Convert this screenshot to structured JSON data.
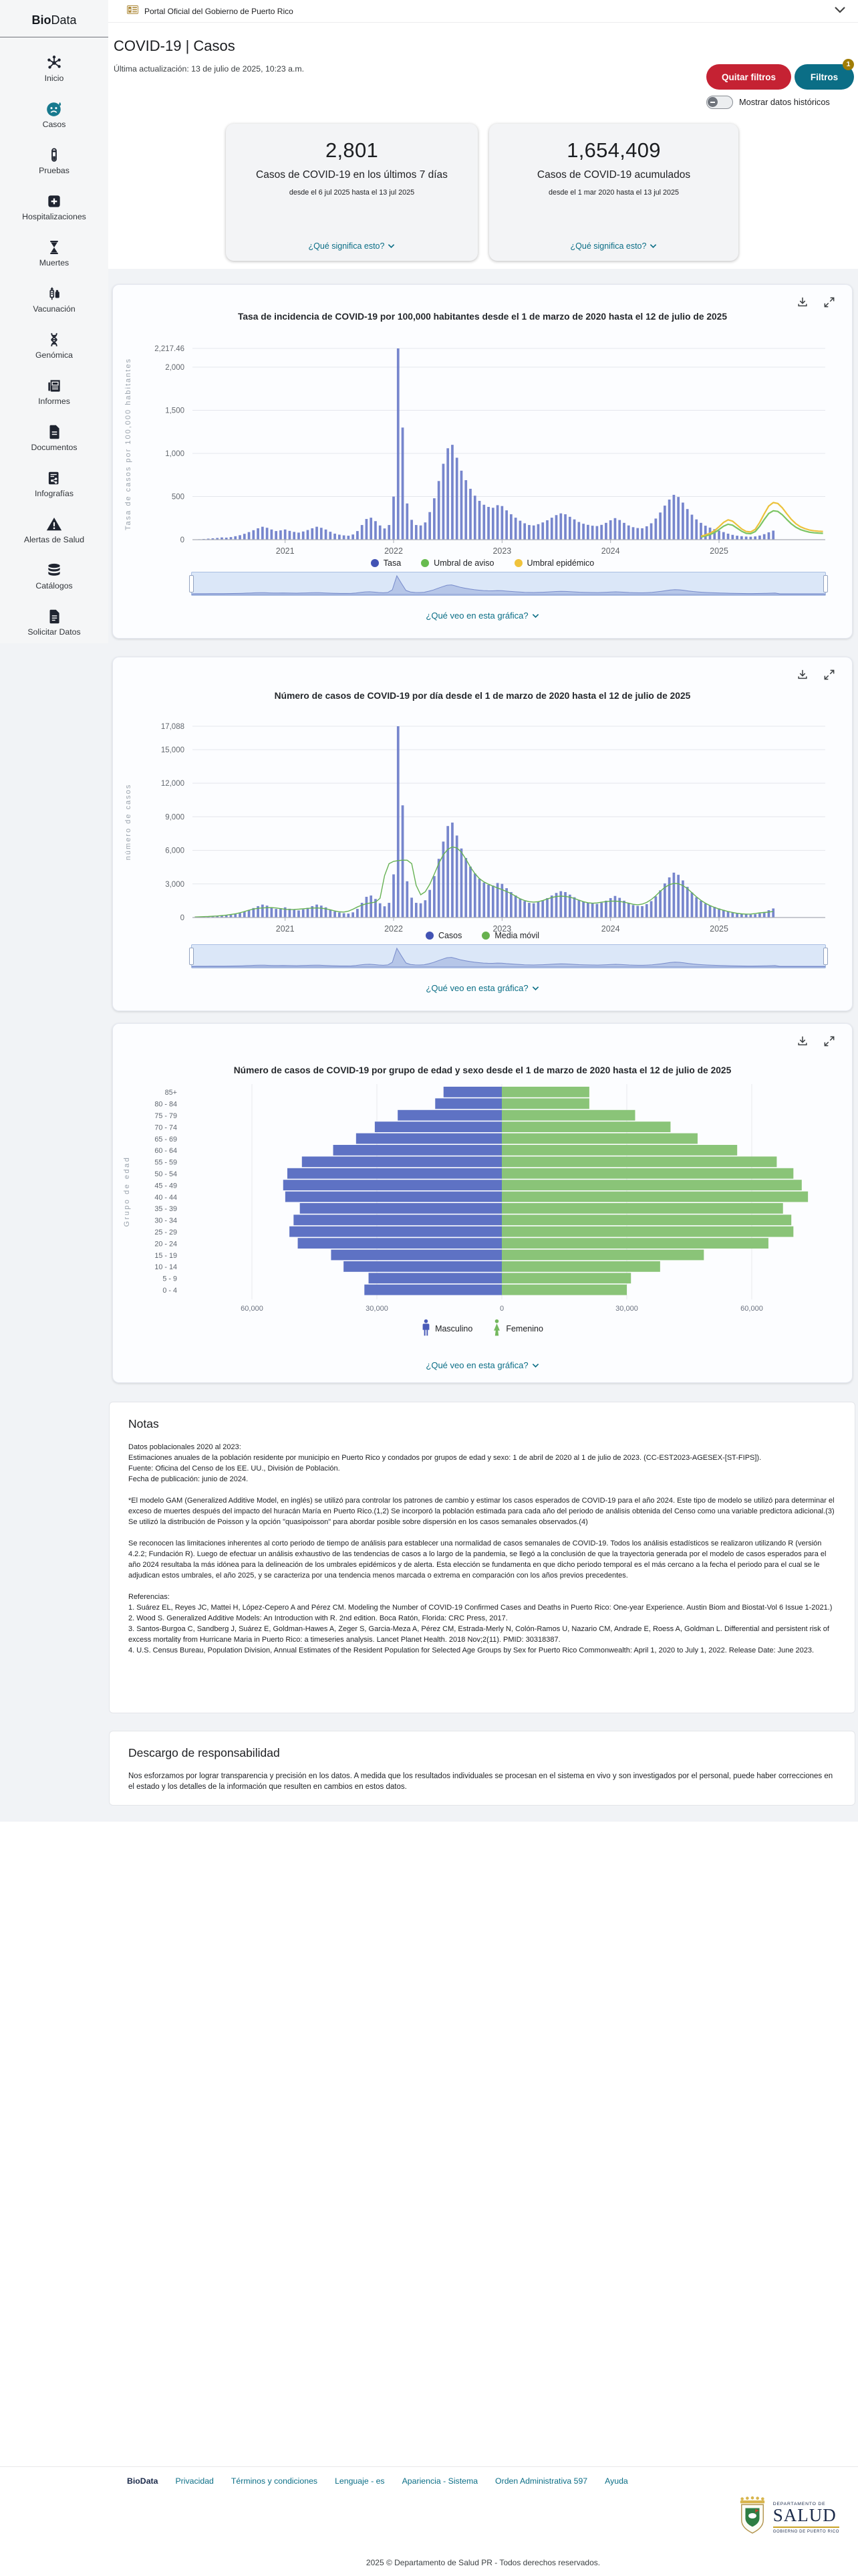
{
  "top_bar": {
    "gov_banner": "Portal Oficial del Gobierno de Puerto Rico"
  },
  "sidebar": {
    "logo_bold": "Bio",
    "logo_rest": "Data",
    "items": [
      {
        "id": "inicio",
        "label": "Inicio"
      },
      {
        "id": "casos",
        "label": "Casos"
      },
      {
        "id": "pruebas",
        "label": "Pruebas"
      },
      {
        "id": "hospitalizaciones",
        "label": "Hospitalizaciones"
      },
      {
        "id": "muertes",
        "label": "Muertes"
      },
      {
        "id": "vacunacion",
        "label": "Vacunación"
      },
      {
        "id": "genomica",
        "label": "Genómica"
      },
      {
        "id": "informes",
        "label": "Informes"
      },
      {
        "id": "documentos",
        "label": "Documentos"
      },
      {
        "id": "infografias",
        "label": "Infografías"
      },
      {
        "id": "alertas",
        "label": "Alertas de Salud"
      },
      {
        "id": "catalogos",
        "label": "Catálogos"
      },
      {
        "id": "solicitar",
        "label": "Solicitar Datos"
      }
    ]
  },
  "header": {
    "title": "COVID-19 | Casos",
    "last_update": "Última actualización: 13 de julio de 2025, 10:23 a.m.",
    "remove_filters_label": "Quitar filtros",
    "filters_label": "Filtros",
    "filters_badge": "1",
    "historic_toggle_label": "Mostrar datos históricos"
  },
  "stat_cards": [
    {
      "value": "2,801",
      "label": "Casos de COVID-19 en los últimos 7 días",
      "range": "desde el 6 jul 2025 hasta el 13 jul 2025",
      "link": "¿Qué significa esto?"
    },
    {
      "value": "1,654,409",
      "label": "Casos de COVID-19 acumulados",
      "range": "desde el 1 mar 2020 hasta el 13 jul 2025",
      "link": "¿Qué significa esto?"
    }
  ],
  "charts": {
    "what_link": "¿Qué veo en esta gráfica?"
  },
  "chart_data": [
    {
      "type": "bar",
      "title": "Tasa de incidencia de COVID-19 por 100,000 habitantes desde el 1 de marzo de 2020 hasta el 12 de julio de 2025",
      "ylabel": "Tasa de casos por 100,000 habitantes",
      "ymax": 2217.46,
      "yticks": [
        {
          "v": 0,
          "label": "0"
        },
        {
          "v": 500,
          "label": "500"
        },
        {
          "v": 1000,
          "label": "1,000"
        },
        {
          "v": 1500,
          "label": "1,500"
        },
        {
          "v": 2000,
          "label": "2,000"
        },
        {
          "v": 2217.46,
          "label": "2,217.46"
        }
      ],
      "year_ticks": [
        {
          "i": 20,
          "label": "2021"
        },
        {
          "i": 44,
          "label": "2022"
        },
        {
          "i": 68,
          "label": "2023"
        },
        {
          "i": 92,
          "label": "2024"
        },
        {
          "i": 116,
          "label": "2025"
        }
      ],
      "legend": [
        {
          "label": "Tasa",
          "color": "#4253b4"
        },
        {
          "label": "Umbral de aviso",
          "color": "#67bb4f"
        },
        {
          "label": "Umbral epidémico",
          "color": "#f0c33c"
        }
      ],
      "bar_color": "#6b7cc9",
      "values": [
        3,
        5,
        8,
        12,
        16,
        20,
        26,
        24,
        30,
        40,
        52,
        68,
        88,
        110,
        132,
        150,
        138,
        118,
        100,
        108,
        118,
        102,
        90,
        82,
        95,
        112,
        132,
        150,
        138,
        118,
        92,
        70,
        58,
        50,
        46,
        60,
        100,
        170,
        240,
        255,
        215,
        165,
        130,
        170,
        500,
        2217.46,
        1300,
        420,
        230,
        170,
        165,
        200,
        320,
        480,
        680,
        880,
        1060,
        1100,
        950,
        800,
        690,
        590,
        510,
        450,
        405,
        380,
        370,
        400,
        390,
        340,
        295,
        255,
        220,
        190,
        170,
        165,
        180,
        200,
        225,
        255,
        285,
        305,
        295,
        265,
        235,
        205,
        185,
        172,
        162,
        158,
        172,
        195,
        225,
        250,
        228,
        195,
        165,
        145,
        135,
        132,
        155,
        190,
        245,
        315,
        395,
        465,
        520,
        495,
        430,
        355,
        290,
        235,
        195,
        162,
        140,
        122,
        105,
        88,
        70,
        56,
        46,
        40,
        36,
        34,
        38,
        48,
        64,
        85,
        105,
        null,
        null,
        null,
        null,
        null,
        null,
        null,
        null,
        null,
        null,
        null
      ],
      "overlays": [
        {
          "name": "Umbral de aviso",
          "color": "#7bc563",
          "start_index": 112,
          "values": [
            31,
            43,
            59,
            82,
            117,
            156,
            179,
            168,
            133,
            98,
            74,
            70,
            94,
            156,
            234,
            304,
            335,
            328,
            289,
            234,
            183,
            144,
            117,
            100,
            87,
            80,
            76,
            74
          ]
        },
        {
          "name": "Umbral epidémico",
          "color": "#ecc23c",
          "start_index": 112,
          "values": [
            40,
            55,
            75,
            105,
            150,
            200,
            230,
            215,
            170,
            125,
            95,
            90,
            120,
            200,
            300,
            390,
            430,
            420,
            370,
            300,
            235,
            185,
            150,
            128,
            112,
            103,
            98,
            95
          ]
        }
      ]
    },
    {
      "type": "bar+line",
      "title": "Número de casos de COVID-19 por día desde el 1 de marzo de 2020 hasta el 12 de julio de 2025",
      "ylabel": "número de casos",
      "ymax": 17088,
      "yticks": [
        {
          "v": 0,
          "label": "0"
        },
        {
          "v": 3000,
          "label": "3,000"
        },
        {
          "v": 6000,
          "label": "6,000"
        },
        {
          "v": 9000,
          "label": "9,000"
        },
        {
          "v": 12000,
          "label": "12,000"
        },
        {
          "v": 15000,
          "label": "15,000"
        },
        {
          "v": 17088,
          "label": "17,088"
        }
      ],
      "year_ticks": [
        {
          "i": 20,
          "label": "2021"
        },
        {
          "i": 44,
          "label": "2022"
        },
        {
          "i": 68,
          "label": "2023"
        },
        {
          "i": 92,
          "label": "2024"
        },
        {
          "i": 116,
          "label": "2025"
        }
      ],
      "legend": [
        {
          "label": "Casos",
          "color": "#4253b4"
        },
        {
          "label": "Media móvil",
          "color": "#67b14e"
        }
      ],
      "bar_color": "#6b7cc9",
      "ma_color": "#66b254",
      "values": [
        23,
        39,
        62,
        93,
        123,
        154,
        200,
        185,
        231,
        308,
        401,
        524,
        678,
        848,
        1018,
        1157,
        1064,
        910,
        771,
        833,
        910,
        786,
        694,
        632,
        732,
        863,
        1018,
        1157,
        1064,
        910,
        709,
        540,
        447,
        386,
        355,
        463,
        771,
        1311,
        1850,
        1966,
        1658,
        1272,
        1002,
        1311,
        3855,
        17088,
        10023,
        3238,
        1773,
        1311,
        1272,
        1542,
        2467,
        3701,
        5243,
        6785,
        8173,
        8481,
        7325,
        6168,
        5320,
        4549,
        3932,
        3470,
        3123,
        2930,
        2853,
        3084,
        3007,
        2621,
        2274,
        1966,
        1696,
        1465,
        1311,
        1272,
        1388,
        1542,
        1735,
        1966,
        2197,
        2352,
        2274,
        2043,
        1812,
        1581,
        1426,
        1326,
        1249,
        1218,
        1326,
        1503,
        1735,
        1928,
        1758,
        1503,
        1272,
        1118,
        1041,
        1018,
        1195,
        1465,
        1889,
        2429,
        3045,
        3585,
        4009,
        3816,
        3315,
        2737,
        2236,
        1812,
        1503,
        1249,
        1079,
        941,
        810,
        678,
        540,
        432,
        355,
        308,
        278,
        262,
        293,
        370,
        493,
        655,
        810,
        null,
        null,
        null,
        null,
        null,
        null,
        null,
        null,
        null,
        null,
        null
      ]
    },
    {
      "type": "pyramid",
      "title": "Número de casos de COVID-19 por grupo de edad y sexo desde el 1 de marzo de 2020 hasta el 12 de julio de 2025",
      "ylabel": "Grupo de edad",
      "age_groups_top_down": [
        "85+",
        "80 - 84",
        "75 - 79",
        "70 - 74",
        "65 - 69",
        "60 - 64",
        "55 - 59",
        "50 - 54",
        "45 - 49",
        "40 - 44",
        "35 - 39",
        "30 - 34",
        "25 - 29",
        "20 - 24",
        "15 - 19",
        "10 - 14",
        "5 - 9",
        "0 - 4"
      ],
      "male_top_down": [
        14000,
        16000,
        25000,
        30500,
        35000,
        40500,
        48000,
        51500,
        52500,
        52000,
        48500,
        50000,
        51000,
        49000,
        41000,
        38000,
        32000,
        33000
      ],
      "female_top_down": [
        21000,
        21000,
        32000,
        40500,
        47000,
        56500,
        66000,
        70000,
        72000,
        73500,
        67500,
        69500,
        70000,
        64000,
        48500,
        38000,
        31000,
        30000
      ],
      "xticks": [
        {
          "v": -60000,
          "label": "60,000"
        },
        {
          "v": -30000,
          "label": "30,000"
        },
        {
          "v": 0,
          "label": "0"
        },
        {
          "v": 30000,
          "label": "30,000"
        },
        {
          "v": 60000,
          "label": "60,000"
        }
      ],
      "male_color": "#5e72c4",
      "female_color": "#8ac478",
      "legend": [
        {
          "label": "Masculino",
          "color": "#4a5cb8",
          "icon": "person-male"
        },
        {
          "label": "Femenino",
          "color": "#74b85e",
          "icon": "person-female"
        }
      ]
    }
  ],
  "notes": {
    "title": "Notas",
    "paragraphs": [
      "Datos poblacionales 2020 al 2023:\nEstimaciones anuales de la población residente por municipio en Puerto Rico y condados por grupos de edad y sexo: 1 de abril de 2020 al 1 de julio de 2023. (CC-EST2023-AGESEX-[ST-FIPS]).\nFuente: Oficina del Censo de los EE. UU., División de Población.\nFecha de publicación: junio de 2024.",
      "*El modelo GAM (Generalized Additive Model, en inglés) se utilizó para controlar los patrones de cambio y estimar los casos esperados de COVID-19 para el año 2024. Este tipo de modelo se utilizó para determinar el exceso de muertes después del impacto del huracán María en Puerto Rico.(1,2) Se incorporó la población estimada para cada año del periodo de análisis obtenida del Censo como una variable predictora adicional.(3) Se utilizó la distribución de Poisson y la opción \"quasipoisson\" para abordar posible sobre dispersión en los casos semanales observados.(4)",
      "Se reconocen las limitaciones inherentes al corto periodo de tiempo de análisis para establecer una normalidad de casos semanales de COVID-19. Todos los análisis estadísticos se realizaron utilizando R (versión 4.2.2; Fundación R). Luego de efectuar un análisis exhaustivo de las tendencias de casos a lo largo de la pandemia, se llegó a la conclusión de que la trayectoria generada por el modelo de casos esperados para el año 2024 resultaba la más idónea para la delineación de los umbrales epidémicos y de alerta. Esta elección se fundamenta en que dicho periodo temporal es el más cercano a la fecha el periodo para el cual se le adjudican estos umbrales, el año 2025, y se caracteriza por una tendencia menos marcada o extrema en comparación con los años previos precedentes.",
      "Referencias:\n1. Suárez EL, Reyes JC, Mattei H, López-Cepero A and Pérez CM. Modeling the Number of COVID-19 Confirmed Cases and Deaths in Puerto Rico: One-year Experience. Austin Biom and Biostat-Vol 6 Issue 1-2021.)\n2. Wood S. Generalized Additive Models: An Introduction with R. 2nd edition. Boca Ratón, Florida: CRC Press, 2017.\n3. Santos-Burgoa C, Sandberg J, Suárez E, Goldman-Hawes A, Zeger S, Garcia-Meza A, Pérez CM, Estrada-Merly N, Colón-Ramos U, Nazario CM, Andrade E, Roess A, Goldman L. Differential and persistent risk of excess mortality from Hurricane Maria in Puerto Rico: a timeseries analysis. Lancet Planet Health. 2018 Nov;2(11). PMID: 30318387.\n4. U.S. Census Bureau, Population Division, Annual Estimates of the Resident Population for Selected Age Groups by Sex for Puerto Rico Commonwealth: April 1, 2020 to July 1, 2022. Release Date: June 2023."
    ]
  },
  "disclaimer": {
    "title": "Descargo de responsabilidad",
    "text": "Nos esforzamos por lograr transparencia y precisión en los datos. A medida que los resultados individuales se procesan en el sistema en vivo y son investigados por el personal, puede haber correcciones en el estado y los detalles de la información que resulten en cambios en estos datos."
  },
  "footer": {
    "links": [
      "BioData",
      "Privacidad",
      "Términos y condiciones",
      "Lenguaje - es",
      "Apariencia - Sistema",
      "Orden Administrativa 597",
      "Ayuda"
    ],
    "logo": {
      "department": "DEPARTAMENTO DE",
      "name": "SALUD",
      "government": "GOBIERNO DE PUERTO RICO"
    },
    "copyright": "2025 © Departamento de Salud PR - Todos derechos reservados."
  },
  "colors": {
    "accent_teal": "#0b6e86",
    "danger_red": "#c52233",
    "badge_gold": "#a07d05",
    "series_blue": "#6b7cc9",
    "series_green": "#8ac478",
    "series_yellow": "#ecc23c"
  }
}
